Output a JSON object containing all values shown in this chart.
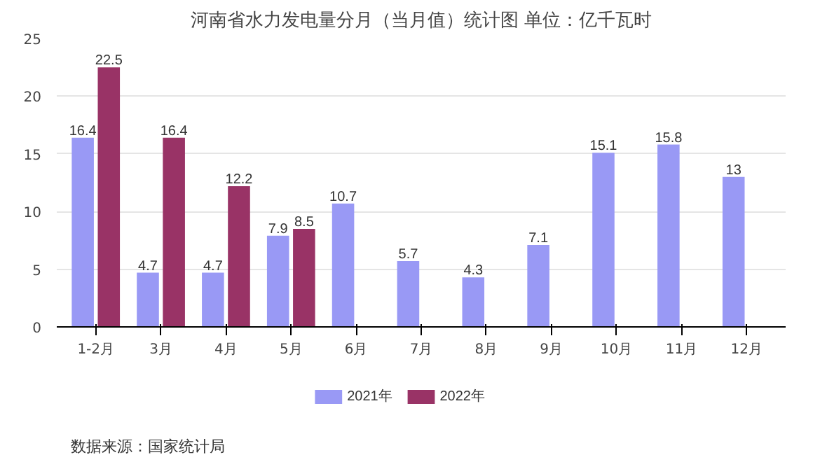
{
  "chart_data": {
    "type": "bar",
    "title": "河南省水力发电量分月（当月值）统计图 单位：亿千瓦时",
    "categories": [
      "1-2月",
      "3月",
      "4月",
      "5月",
      "6月",
      "7月",
      "8月",
      "9月",
      "10月",
      "11月",
      "12月"
    ],
    "series": [
      {
        "name": "2021年",
        "color": "#9999f5",
        "values": [
          16.4,
          4.7,
          4.7,
          7.9,
          10.7,
          5.7,
          4.3,
          7.1,
          15.1,
          15.8,
          13
        ]
      },
      {
        "name": "2022年",
        "color": "#993366",
        "values": [
          22.5,
          16.4,
          12.2,
          8.5,
          null,
          null,
          null,
          null,
          null,
          null,
          null
        ]
      }
    ],
    "ylim": [
      0,
      25
    ],
    "yticks": [
      0,
      5,
      10,
      15,
      20,
      25
    ],
    "grid": "y",
    "legend": "bottom",
    "data_labels": true,
    "annotations": [
      "数据来源：国家统计局"
    ]
  }
}
